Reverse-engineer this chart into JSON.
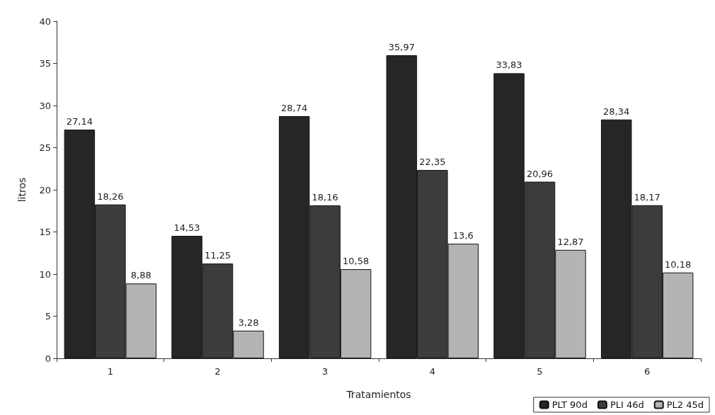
{
  "chart_data": {
    "type": "bar",
    "xlabel": "Tratamientos",
    "ylabel": "litros",
    "categories": [
      "1",
      "2",
      "3",
      "4",
      "5",
      "6"
    ],
    "series": [
      {
        "name": "PLT 90d",
        "color": "#262626",
        "values": [
          27.14,
          14.53,
          28.74,
          35.97,
          33.83,
          28.34
        ],
        "value_labels": [
          "27,14",
          "14,53",
          "28,74",
          "35,97",
          "33,83",
          "28,34"
        ]
      },
      {
        "name": "PLI 46d",
        "color": "#3c3c3c",
        "values": [
          18.26,
          11.25,
          18.16,
          22.35,
          20.96,
          18.17
        ],
        "value_labels": [
          "18,26",
          "11,25",
          "18,16",
          "22,35",
          "20,96",
          "18,17"
        ]
      },
      {
        "name": "PL2 45d",
        "color": "#b4b4b4",
        "values": [
          8.88,
          3.28,
          10.58,
          13.6,
          12.87,
          10.18
        ],
        "value_labels": [
          "8,88",
          "3,28",
          "10,58",
          "13,6",
          "12,87",
          "10,18"
        ]
      }
    ],
    "ylim": [
      0,
      40
    ],
    "yticks": [
      0,
      5,
      10,
      15,
      20,
      25,
      30,
      35,
      40
    ],
    "grid": false,
    "legend": "bottom right"
  }
}
